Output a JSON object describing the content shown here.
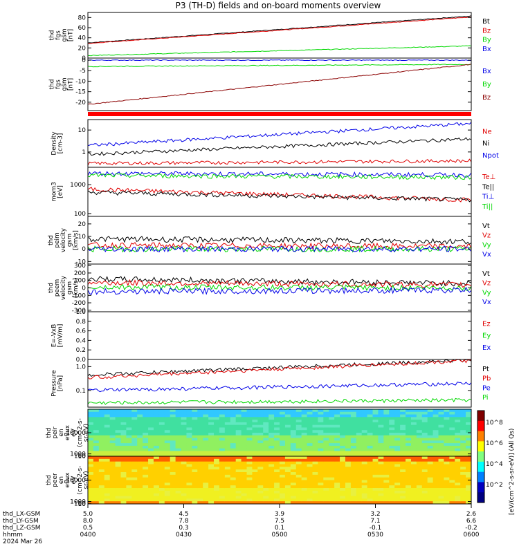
{
  "title": "P3 (TH-D) fields and on-board moments overview",
  "colors": {
    "black": "#000000",
    "red": "#e00000",
    "green": "#00d800",
    "blue": "#0000e8",
    "darkred": "#8b0000"
  },
  "chart_data": [
    {
      "id": "fgs_tot",
      "type": "line",
      "ylabel": [
        "thd",
        "fgs",
        "gsm",
        "[nT]"
      ],
      "ylim": [
        0,
        90
      ],
      "ticks": [
        "0",
        "20",
        "40",
        "60",
        "80"
      ],
      "series": [
        {
          "name": "Bt",
          "color": "#000000",
          "start": 30,
          "end": 83
        },
        {
          "name": "Bz",
          "color": "#e00000",
          "start": 29,
          "end": 81
        },
        {
          "name": "By",
          "color": "#00d800",
          "start": 5,
          "end": 24
        },
        {
          "name": "Bx",
          "color": "#0000e8",
          "start": -1,
          "end": -2
        }
      ]
    },
    {
      "id": "fgs_comp",
      "type": "line",
      "ylabel": [
        "thd",
        "fgs",
        "gsm",
        "[nT]"
      ],
      "ylim": [
        -24,
        1
      ],
      "ticks": [
        "-20",
        "-15",
        "-10",
        "-5",
        "0"
      ],
      "series": [
        {
          "name": "Bx",
          "color": "#0000e8",
          "start": 0,
          "end": 0
        },
        {
          "name": "By",
          "color": "#00d800",
          "start": -3,
          "end": -2
        },
        {
          "name": "Bz",
          "color": "#8b0000",
          "start": -21,
          "end": -2
        }
      ]
    },
    {
      "id": "density",
      "type": "line",
      "log": true,
      "ylabel": [
        "Density",
        "[cm-3]"
      ],
      "ylim": [
        0.2,
        30
      ],
      "ticks": [
        "1",
        "10"
      ],
      "series": [
        {
          "name": "Ne",
          "color": "#e00000",
          "start": 0.3,
          "end": 0.4
        },
        {
          "name": "Ni",
          "color": "#000000",
          "start": 0.8,
          "end": 4
        },
        {
          "name": "Npot",
          "color": "#0000e8",
          "start": 2,
          "end": 20
        }
      ]
    },
    {
      "id": "temperature",
      "type": "line",
      "log": true,
      "ylabel": [
        "mom3",
        "[eV]"
      ],
      "ylim": [
        80,
        4000
      ],
      "ticks": [
        "100",
        "1000"
      ],
      "series": [
        {
          "name": "Te⊥",
          "color": "#e00000",
          "start": 700,
          "end": 300
        },
        {
          "name": "Te||",
          "color": "#000000",
          "start": 550,
          "end": 300
        },
        {
          "name": "Ti⊥",
          "color": "#0000e8",
          "start": 2500,
          "end": 2200
        },
        {
          "name": "Ti||",
          "color": "#00d800",
          "start": 2100,
          "end": 1800
        }
      ]
    },
    {
      "id": "v_ions",
      "type": "line",
      "ylabel": [
        "thd",
        "peim",
        "velocity",
        "gsm",
        "[km/s]"
      ],
      "ylim": [
        -12,
        26
      ],
      "ticks": [
        "-10",
        "0",
        "10",
        "20"
      ],
      "series": [
        {
          "name": "Vt",
          "color": "#000000",
          "start": 8,
          "end": 6
        },
        {
          "name": "Vz",
          "color": "#e00000",
          "start": 3,
          "end": 2
        },
        {
          "name": "Vy",
          "color": "#00d800",
          "start": 0,
          "end": 0
        },
        {
          "name": "Vx",
          "color": "#0000e8",
          "start": 0,
          "end": 0
        }
      ]
    },
    {
      "id": "v_elec",
      "type": "line",
      "ylabel": [
        "thd",
        "peem",
        "velocity",
        "gsm",
        "[km/s]"
      ],
      "ylim": [
        -320,
        320
      ],
      "ticks": [
        "-300",
        "-200",
        "-100",
        "0",
        "100",
        "200",
        "300"
      ],
      "series": [
        {
          "name": "Vt",
          "color": "#000000",
          "start": 120,
          "end": 60
        },
        {
          "name": "Vz",
          "color": "#e00000",
          "start": 70,
          "end": 40
        },
        {
          "name": "Vy",
          "color": "#00d800",
          "start": 10,
          "end": 0
        },
        {
          "name": "Vx",
          "color": "#0000e8",
          "start": -50,
          "end": -30
        }
      ]
    },
    {
      "id": "efield",
      "type": "line",
      "ylabel": [
        "E=-VxB",
        "[mV/m]"
      ],
      "ylim": [
        0,
        1
      ],
      "ticks": [
        "0.0",
        "0.2",
        "0.4",
        "0.6",
        "0.8",
        "1.0"
      ],
      "series": [
        {
          "name": "Ez",
          "color": "#e00000"
        },
        {
          "name": "Ey",
          "color": "#00d800"
        },
        {
          "name": "Ex",
          "color": "#0000e8"
        }
      ]
    },
    {
      "id": "pressure",
      "type": "line",
      "log": true,
      "ylabel": [
        "Pressure",
        "[nPa]"
      ],
      "ylim": [
        0.02,
        2
      ],
      "ticks": [
        "0.1",
        "1.0"
      ],
      "series": [
        {
          "name": "Pt",
          "color": "#000000",
          "start": 0.45,
          "end": 1.9
        },
        {
          "name": "Pb",
          "color": "#e00000",
          "start": 0.35,
          "end": 1.8
        },
        {
          "name": "Pe",
          "color": "#0000e8",
          "start": 0.1,
          "end": 0.2
        },
        {
          "name": "Pi",
          "color": "#00d800",
          "start": 0.03,
          "end": 0.04
        }
      ]
    },
    {
      "id": "peir_spec",
      "type": "heatmap",
      "ylabel": [
        "thd",
        "peir",
        "en",
        "eflux",
        "eV",
        "(cm^2-s-",
        "sr-eV)"
      ],
      "ylim": [
        8,
        20000
      ],
      "ticks": [
        "10",
        "100",
        "1000",
        "10000"
      ]
    },
    {
      "id": "peer_spec",
      "type": "heatmap",
      "ylabel": [
        "thd",
        "peer",
        "en",
        "eflux",
        "eV",
        "(cm^2-s-",
        "sr-eV)"
      ],
      "ylim": [
        8,
        20000
      ],
      "ticks": [
        "10",
        "100",
        "1000",
        "10000"
      ]
    }
  ],
  "colorbar": {
    "ticks": [
      "10^8",
      "10^6",
      "10^4",
      "10^2"
    ],
    "label": "[eV/(cm^2-s-sr-eV)] (All Qs)"
  },
  "xaxis": {
    "rows": [
      {
        "label": "thd_LX-GSM",
        "values": [
          "5.0",
          "4.5",
          "3.9",
          "3.2",
          "2.6"
        ]
      },
      {
        "label": "thd_LY-GSM",
        "values": [
          "8.0",
          "7.8",
          "7.5",
          "7.1",
          "6.6"
        ]
      },
      {
        "label": "thd_LZ-GSM",
        "values": [
          "0.5",
          "0.3",
          "0.1",
          "-0.1",
          "-0.2"
        ]
      },
      {
        "label": "hhmm",
        "values": [
          "0400",
          "0430",
          "0500",
          "0530",
          "0600"
        ]
      }
    ],
    "date": "2024 Mar 26"
  }
}
